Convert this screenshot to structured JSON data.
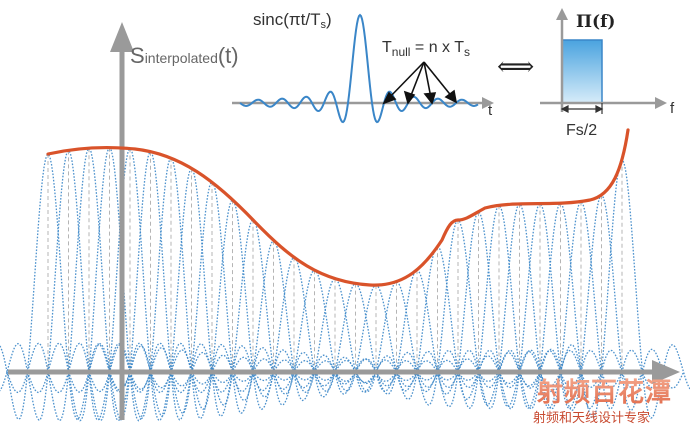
{
  "main": {
    "y_axis_label_prefix": "S",
    "y_axis_label_subscript": "interpolated",
    "y_axis_label_suffix": "(t)"
  },
  "sinc_inset": {
    "title": "sinc(πt/T",
    "title_sub": "s",
    "title_close": ")",
    "annotation_prefix": "T",
    "annotation_sub": "null",
    "annotation_rest": " = n x T",
    "annotation_sub2": "s",
    "x_axis_label": "t"
  },
  "equivalence_symbol": "⟺",
  "rect_inset": {
    "title": "Π(f)",
    "x_axis_label": "f",
    "bandwidth_label": "Fs/2"
  },
  "watermark": {
    "line1": "射频百花潭",
    "line2": "射频和天线设计专家"
  },
  "colors": {
    "sinc_curve": "#3a86c8",
    "interpolated_curve": "#d9532a",
    "axis": "#9a9a9a",
    "rect_fill": "#7fbde8"
  }
}
